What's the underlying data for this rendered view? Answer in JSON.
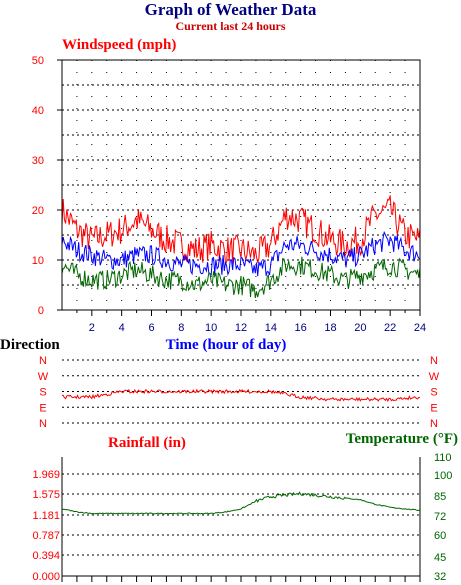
{
  "header": {
    "title": "Graph of Weather Data",
    "subtitle": "Current last 24 hours"
  },
  "colors": {
    "navy": "#000080",
    "red": "#ff0000",
    "darkred": "#cc0000",
    "blue": "#0000ff",
    "green": "#006600",
    "grid": "#000000"
  },
  "chart_data": [
    {
      "type": "line",
      "title": "Windspeed (mph)",
      "xlabel": "Time (hour of day)",
      "ylabel": "Windspeed (mph)",
      "xlim": [
        0,
        24
      ],
      "ylim": [
        0,
        50
      ],
      "x_ticks": [
        "2",
        "4",
        "6",
        "8",
        "10",
        "12",
        "14",
        "16",
        "18",
        "20",
        "22",
        "24"
      ],
      "y_ticks": [
        "0",
        "10",
        "20",
        "30",
        "40",
        "50"
      ],
      "grid": true,
      "x": [
        0,
        1,
        2,
        3,
        4,
        5,
        6,
        7,
        8,
        9,
        10,
        11,
        12,
        13,
        14,
        15,
        16,
        17,
        18,
        19,
        20,
        21,
        22,
        23,
        24
      ],
      "series": [
        {
          "values": [
            20,
            16,
            14,
            15,
            16,
            18,
            16,
            14,
            13,
            12,
            13,
            12,
            12,
            11,
            13,
            19,
            18,
            16,
            14,
            13,
            14,
            19,
            20,
            15,
            14
          ]
        },
        {
          "values": [
            14,
            12,
            11,
            10,
            10,
            11,
            11,
            10,
            9,
            9,
            9,
            9,
            9,
            8,
            9,
            13,
            13,
            12,
            11,
            10,
            11,
            13,
            14,
            12,
            11
          ]
        },
        {
          "values": [
            9,
            7,
            6,
            6,
            7,
            8,
            7,
            6,
            6,
            5,
            6,
            5,
            5,
            4,
            6,
            9,
            9,
            8,
            7,
            6,
            7,
            8,
            9,
            8,
            7
          ]
        }
      ]
    },
    {
      "type": "line",
      "title": "Direction",
      "ylim": [
        "N",
        "W",
        "S",
        "E",
        "N"
      ],
      "y_ticks": [
        "N",
        "W",
        "S",
        "E",
        "N"
      ],
      "grid": true,
      "x": [
        0,
        2,
        4,
        6,
        8,
        10,
        12,
        14,
        16,
        18,
        20,
        22,
        24
      ],
      "values": [
        "S-SE",
        "S-SE",
        "S",
        "S",
        "S",
        "S",
        "S",
        "S",
        "S-SE",
        "SE",
        "SE",
        "SE",
        "S-SE"
      ]
    },
    {
      "type": "line",
      "title": "Rainfall (in)",
      "ylabel": "Rainfall (in)",
      "y_ticks": [
        "0.000",
        "0.394",
        "0.787",
        "1.181",
        "1.575",
        "1.969"
      ],
      "grid": true,
      "values": [
        0,
        0,
        0,
        0,
        0,
        0,
        0,
        0,
        0,
        0,
        0,
        0,
        0
      ]
    },
    {
      "type": "line",
      "title": "Temperature (°F)",
      "ylabel": "Temperature (°F)",
      "ylim": [
        32,
        110
      ],
      "y_ticks": [
        "32",
        "45",
        "60",
        "72",
        "85",
        "100",
        "110"
      ],
      "x": [
        0,
        1,
        2,
        3,
        4,
        5,
        6,
        7,
        8,
        9,
        10,
        11,
        12,
        13,
        14,
        15,
        16,
        17,
        18,
        19,
        20,
        21,
        22,
        23,
        24
      ],
      "values": [
        76,
        74,
        73,
        73,
        73,
        73,
        73,
        73,
        73,
        73,
        73,
        74,
        76,
        81,
        84,
        85,
        86,
        85,
        84,
        83,
        82,
        79,
        77,
        76,
        75
      ]
    }
  ]
}
